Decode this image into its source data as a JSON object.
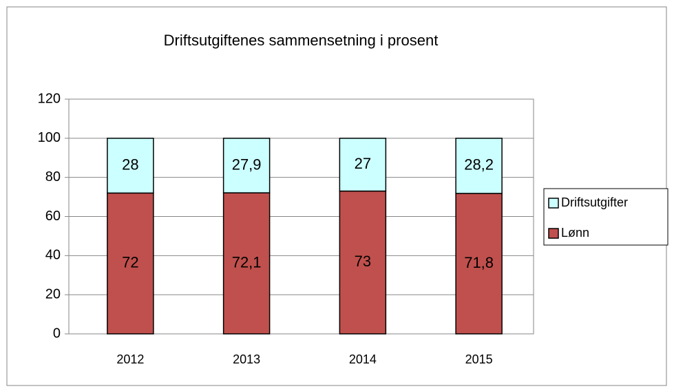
{
  "chart_data": {
    "type": "stacked-bar",
    "title": "Driftsutgiftenes sammensetning i prosent",
    "categories": [
      "2012",
      "2013",
      "2014",
      "2015"
    ],
    "series": [
      {
        "name": "Lønn",
        "color": "#c0504d",
        "values": [
          72,
          72.1,
          73,
          71.8
        ],
        "value_labels": [
          "72",
          "72,1",
          "73",
          "71,8"
        ]
      },
      {
        "name": "Driftsutgifter",
        "color": "#ccffff",
        "values": [
          28,
          27.9,
          27,
          28.2
        ],
        "value_labels": [
          "28",
          "27,9",
          "27",
          "28,2"
        ]
      }
    ],
    "ylim": [
      0,
      120
    ],
    "yticks": [
      0,
      20,
      40,
      60,
      80,
      100,
      120
    ],
    "grid": true,
    "legend": "right"
  }
}
